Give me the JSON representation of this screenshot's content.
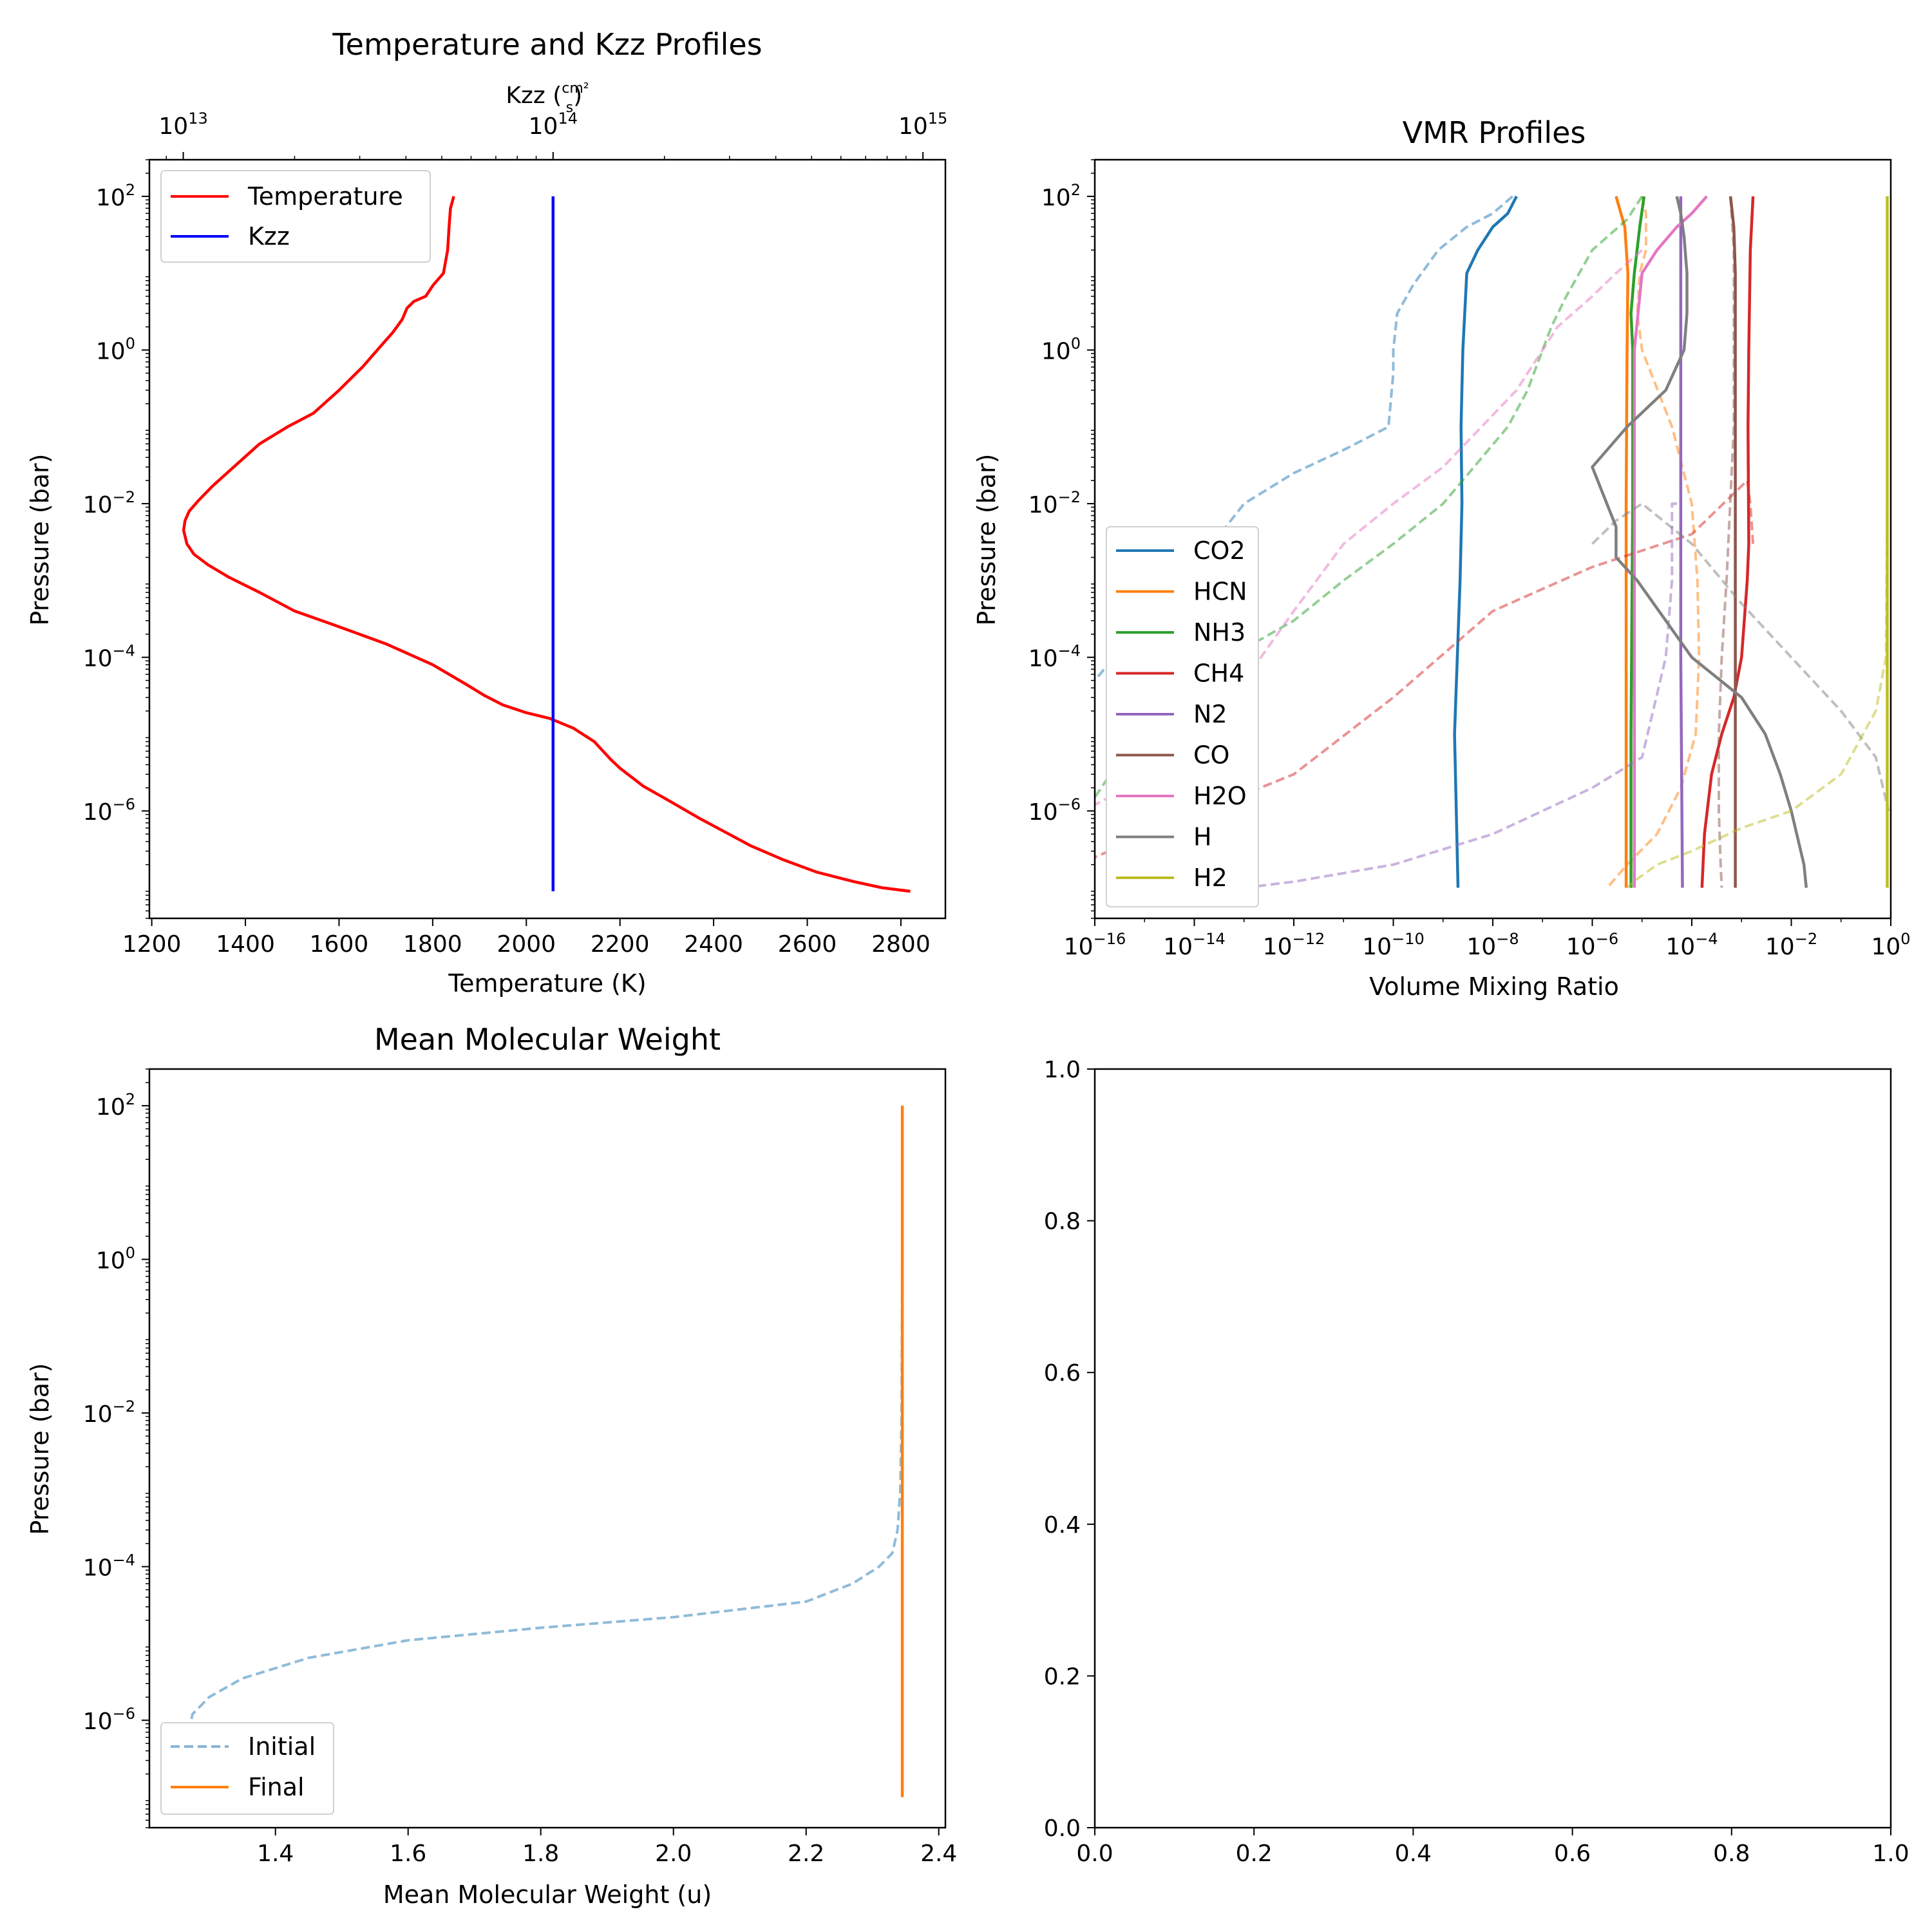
{
  "chart_data": [
    {
      "type": "line",
      "title": "Temperature and Kzz Profiles",
      "xlabel": "Temperature (K)",
      "ylabel": "Pressure (bar)",
      "x_top_label": "Kzz (cm²/s)",
      "xlim": [
        1195,
        2895
      ],
      "ylim": [
        300,
        4e-08
      ],
      "y_scale": "log",
      "x_ticks": [
        "1200",
        "1400",
        "1600",
        "1800",
        "2000",
        "2200",
        "2400",
        "2600",
        "2800"
      ],
      "y_ticks": [
        "10^-6",
        "10^-4",
        "10^-2",
        "10^0",
        "10^2"
      ],
      "x_top_ticks": [
        "10^13",
        "10^14",
        "10^15"
      ],
      "x_top_lim": [
        8100000000000.0,
        1150000000000000.0
      ],
      "legend": {
        "position": "top-left",
        "entries": [
          "Temperature",
          "Kzz"
        ]
      },
      "series": [
        {
          "name": "Temperature",
          "color": "#ff0000",
          "x": [
            1845,
            1838,
            1835,
            1832,
            1823,
            1801,
            1785,
            1760,
            1745,
            1735,
            1715,
            1693,
            1650,
            1600,
            1545,
            1490,
            1430,
            1375,
            1330,
            1300,
            1280,
            1271,
            1268,
            1275,
            1290,
            1320,
            1365,
            1430,
            1505,
            1600,
            1700,
            1800,
            1870,
            1910,
            1950,
            2000,
            2050,
            2100,
            2145,
            2180,
            2200,
            2250,
            2310,
            2370,
            2420,
            2480,
            2550,
            2620,
            2700,
            2760,
            2820
          ],
          "y": [
            100,
            70,
            40,
            20,
            10,
            7,
            5,
            4.3,
            3.5,
            2.5,
            1.7,
            1.2,
            0.6,
            0.3,
            0.15,
            0.1,
            0.06,
            0.03,
            0.017,
            0.011,
            0.008,
            0.006,
            0.0045,
            0.003,
            0.0022,
            0.0016,
            0.0011,
            0.0007,
            0.0004,
            0.00025,
            0.00015,
            8e-05,
            4.5e-05,
            3.2e-05,
            2.4e-05,
            1.9e-05,
            1.6e-05,
            1.2e-05,
            8e-06,
            4.7e-06,
            3.6e-06,
            2.1e-06,
            1.3e-06,
            8e-07,
            5.5e-07,
            3.5e-07,
            2.3e-07,
            1.6e-07,
            1.2e-07,
            1e-07,
            9e-08
          ]
        },
        {
          "name": "Kzz",
          "color": "#0000ff",
          "x_top": [
            100000000000000.0,
            100000000000000.0
          ],
          "y": [
            100,
            9e-08
          ]
        }
      ]
    },
    {
      "type": "line",
      "title": "VMR Profiles",
      "xlabel": "Volume Mixing Ratio",
      "ylabel": "Pressure (bar)",
      "x_scale": "log",
      "y_scale": "log",
      "xlim": [
        1e-16,
        1
      ],
      "ylim": [
        300,
        4e-08
      ],
      "x_ticks": [
        "10^-16",
        "10^-14",
        "10^-12",
        "10^-10",
        "10^-8",
        "10^-6",
        "10^-4",
        "10^-2",
        "10^0"
      ],
      "y_ticks": [
        "10^-6",
        "10^-4",
        "10^-2",
        "10^0",
        "10^2"
      ],
      "legend": {
        "position": "bottom-left",
        "entries": [
          "CO2",
          "HCN",
          "NH3",
          "CH4",
          "N2",
          "CO",
          "H2O",
          "H",
          "H2"
        ]
      },
      "note": "solid = final, dashed = initial",
      "series": [
        {
          "name": "CO2",
          "color": "#1f77b4",
          "final": {
            "x": [
              3e-08,
              2e-08,
              1e-08,
              5e-09,
              3e-09,
              2.5e-09,
              2.3e-09,
              2.4e-09,
              2.2e-09,
              1.7e-09,
              2e-09
            ],
            "y": [
              100,
              60,
              40,
              20,
              10,
              1,
              0.1,
              0.01,
              0.001,
              1e-05,
              1e-07
            ]
          },
          "initial": {
            "x": [
              2.5e-08,
              1e-08,
              3e-09,
              8e-10,
              2.5e-10,
              1.2e-10,
              1e-10,
              1e-10,
              8e-11,
              1e-11,
              1e-12,
              1e-13,
              1e-14,
              1e-15,
              1e-16
            ],
            "y": [
              100,
              60,
              40,
              20,
              7,
              3,
              1,
              0.5,
              0.1,
              0.05,
              0.025,
              0.01,
              0.0015,
              0.0003,
              5e-05
            ]
          }
        },
        {
          "name": "HCN",
          "color": "#ff7f0e",
          "final": {
            "x": [
              3e-06,
              4.5e-06,
              5.2e-06,
              5e-06,
              4.8e-06,
              4.8e-06
            ],
            "y": [
              100,
              40,
              10,
              1,
              0.01,
              1e-07
            ]
          },
          "initial": {
            "x": [
              1e-05,
              1.2e-05,
              1.2e-05,
              9e-06,
              8e-06,
              1e-05,
              4e-05,
              0.0001,
              0.00013,
              0.00014,
              0.00012,
              6e-05,
              2e-05,
              5e-06,
              2e-06
            ],
            "y": [
              100,
              60,
              20,
              10,
              3,
              1,
              0.1,
              0.01,
              0.001,
              0.0001,
              1e-05,
              2e-06,
              5e-07,
              2e-07,
              1e-07
            ]
          }
        },
        {
          "name": "NH3",
          "color": "#2ca02c",
          "final": {
            "x": [
              1.1e-05,
              9e-06,
              7e-06,
              6e-06,
              6.5e-06,
              6.5e-06,
              6e-06,
              6e-06
            ],
            "y": [
              100,
              40,
              10,
              3,
              1,
              0.01,
              1e-05,
              1e-07
            ]
          },
          "initial": {
            "x": [
              1e-05,
              5e-06,
              1e-06,
              3e-07,
              1.5e-07,
              1e-07,
              5e-08,
              2e-08,
              1e-09,
              1e-10,
              1e-11,
              1e-12,
              5e-14,
              3e-15,
              1e-16
            ],
            "y": [
              100,
              50,
              20,
              5,
              2,
              1,
              0.3,
              0.1,
              0.01,
              0.003,
              0.001,
              0.0003,
              0.0001,
              4e-05,
              1.5e-06
            ]
          }
        },
        {
          "name": "CH4",
          "color": "#d62728",
          "final": {
            "x": [
              0.0017,
              0.0015,
              0.0014,
              0.00135,
              0.0014,
              0.0013,
              0.001,
              0.0007,
              0.0004,
              0.00025,
              0.00018,
              0.00016
            ],
            "y": [
              100,
              20,
              1,
              0.1,
              0.003,
              0.001,
              0.0001,
              3e-05,
              1e-05,
              3e-06,
              5e-07,
              1e-07
            ]
          },
          "initial": {
            "x": [
              0.0017,
              0.0015,
              0.0013,
              0.0001,
              1e-06,
              1e-08,
              1e-10,
              1e-12,
              1e-14,
              1e-16
            ],
            "y": [
              0.003,
              0.01,
              0.02,
              0.004,
              0.0015,
              0.0004,
              3e-05,
              3e-06,
              9e-07,
              2.5e-07
            ]
          }
        },
        {
          "name": "N2",
          "color": "#9467bd",
          "final": {
            "x": [
              6e-05,
              6e-05,
              6e-05,
              6.5e-05
            ],
            "y": [
              100,
              1,
              0.0001,
              1e-07
            ]
          },
          "initial": {
            "x": [
              6e-05,
              6e-05,
              6e-05,
              5e-05,
              4e-05,
              4e-05,
              3e-05,
              1e-05,
              1e-06,
              1e-08,
              1e-10,
              1e-12,
              1e-13
            ],
            "y": [
              100,
              1,
              0.01,
              0.01,
              0.01,
              0.001,
              0.0001,
              5e-06,
              2e-06,
              5e-07,
              2e-07,
              1.2e-07,
              1e-07
            ]
          }
        },
        {
          "name": "CO",
          "color": "#8c564b",
          "final": {
            "x": [
              0.0006,
              0.0007,
              0.00075,
              0.00075,
              0.00075
            ],
            "y": [
              100,
              40,
              10,
              0.001,
              1e-07
            ]
          },
          "initial": {
            "x": [
              0.0006,
              0.0007,
              0.0007,
              0.0007,
              0.0005,
              0.0004,
              0.00035,
              0.00035,
              0.00038,
              0.0004
            ],
            "y": [
              100,
              20,
              1,
              0.1,
              0.001,
              0.0001,
              1e-05,
              1e-06,
              2e-07,
              1e-07
            ]
          }
        },
        {
          "name": "H2O",
          "color": "#e377c2",
          "final": {
            "x": [
              0.0002,
              0.0001,
              5e-05,
              2e-05,
              1e-05,
              7e-06,
              7e-06,
              7e-06
            ],
            "y": [
              100,
              60,
              40,
              20,
              10,
              1,
              0.001,
              1e-07
            ]
          },
          "initial": {
            "x": [
              1e-05,
              3e-06,
              1e-06,
              2e-07,
              1e-07,
              3e-08,
              1e-09,
              1e-10,
              1e-11,
              1e-12,
              1e-14,
              1e-16
            ],
            "y": [
              20,
              10,
              5,
              2,
              1,
              0.3,
              0.03,
              0.01,
              0.003,
              0.0004,
              6e-06,
              1.2e-06
            ]
          }
        },
        {
          "name": "H",
          "color": "#7f7f7f",
          "final": {
            "x": [
              5e-05,
              6e-05,
              7e-05,
              8e-05,
              8e-05,
              7e-05,
              3e-05,
              5e-06,
              1e-06,
              3e-06,
              3e-06,
              8e-06,
              3e-05,
              0.0001,
              0.001,
              0.003,
              0.006,
              0.01,
              0.018,
              0.02
            ],
            "y": [
              100,
              60,
              30,
              10,
              3,
              1,
              0.3,
              0.1,
              0.03,
              0.005,
              0.002,
              0.001,
              0.0003,
              0.0001,
              3e-05,
              1e-05,
              3e-06,
              1e-06,
              2e-07,
              1e-07
            ]
          },
          "initial": {
            "x": [
              1e-06,
              3e-06,
              1e-05,
              0.0001,
              0.001,
              0.01,
              0.1,
              0.5,
              0.9
            ],
            "y": [
              0.003,
              0.006,
              0.01,
              0.003,
              0.0005,
              0.0001,
              2e-05,
              5e-06,
              1e-06
            ]
          }
        },
        {
          "name": "H2",
          "color": "#bcbd22",
          "final": {
            "x": [
              0.85,
              0.85,
              0.85,
              0.85
            ],
            "y": [
              100,
              1,
              0.0001,
              1e-07
            ]
          },
          "initial": {
            "x": [
              0.85,
              0.85,
              0.8,
              0.5,
              0.1,
              0.01,
              0.001,
              0.0001,
              2e-05,
              8e-06,
              5e-06
            ],
            "y": [
              100,
              0.01,
              0.0001,
              2e-05,
              3e-06,
              1e-06,
              6e-07,
              3e-07,
              2e-07,
              1.3e-07,
              1e-07
            ]
          }
        }
      ]
    },
    {
      "type": "line",
      "title": "Mean Molecular Weight",
      "xlabel": "Mean Molecular Weight (u)",
      "ylabel": "Pressure (bar)",
      "xlim": [
        1.21,
        2.41
      ],
      "ylim": [
        300,
        4e-08
      ],
      "y_scale": "log",
      "x_ticks": [
        "1.4",
        "1.6",
        "1.8",
        "2.0",
        "2.2",
        "2.4"
      ],
      "y_ticks": [
        "10^-6",
        "10^-4",
        "10^-2",
        "10^0",
        "10^2"
      ],
      "legend": {
        "position": "bottom-left",
        "entries": [
          "Initial",
          "Final"
        ]
      },
      "series": [
        {
          "name": "Initial",
          "color": "#1f77b4",
          "style": "dashed",
          "x": [
            2.345,
            2.345,
            2.344,
            2.342,
            2.338,
            2.33,
            2.31,
            2.27,
            2.2,
            2.0,
            1.8,
            1.6,
            1.45,
            1.35,
            1.3,
            1.275,
            1.265,
            1.263
          ],
          "y": [
            100,
            1,
            0.01,
            0.001,
            0.0003,
            0.00015,
            0.0001,
            6e-05,
            3.5e-05,
            2.2e-05,
            1.6e-05,
            1.1e-05,
            6.5e-06,
            3.5e-06,
            2e-06,
            1.2e-06,
            5e-07,
            1e-07
          ]
        },
        {
          "name": "Final",
          "color": "#ff7f0e",
          "style": "solid",
          "x": [
            2.345,
            2.345
          ],
          "y": [
            100,
            1e-07
          ]
        }
      ]
    },
    {
      "type": "line",
      "title": "",
      "xlim": [
        0,
        1
      ],
      "ylim": [
        0,
        1
      ],
      "x_ticks": [
        "0.0",
        "0.2",
        "0.4",
        "0.6",
        "0.8",
        "1.0"
      ],
      "y_ticks": [
        "0.0",
        "0.2",
        "0.4",
        "0.6",
        "0.8",
        "1.0"
      ],
      "series": []
    }
  ]
}
